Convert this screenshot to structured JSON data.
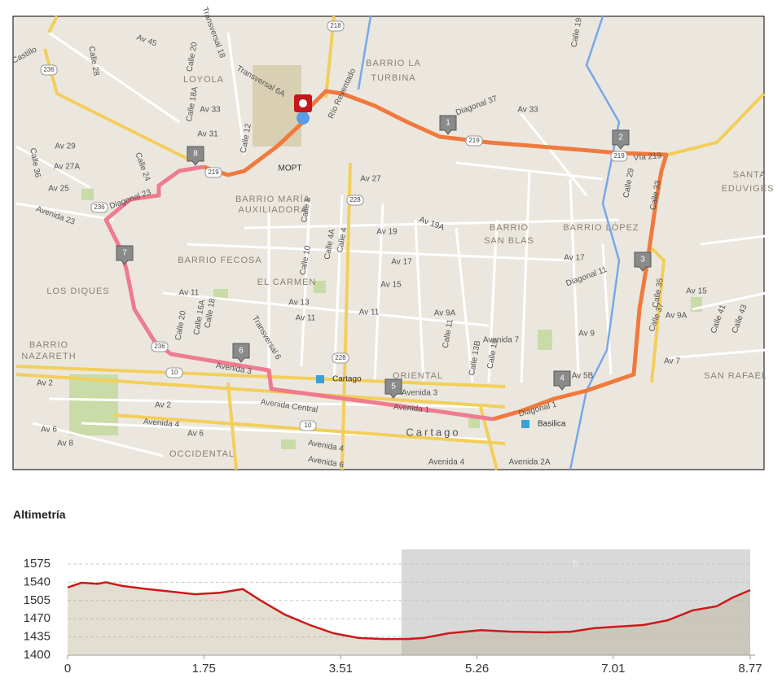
{
  "map": {
    "labels": [
      "Castillo",
      "Calle 28",
      "Av 45",
      "Calle 20",
      "Transversal 18",
      "LOYOLA",
      "Calle 18A",
      "Av 33",
      "Av 31",
      "Calle 12",
      "Transversal 6A",
      "BARRIO LA",
      "TURBINA",
      "Río Reventado",
      "Diagonal 37",
      "Av 33",
      "Calle 19",
      "Calle 29",
      "Calle 33",
      "SANTA",
      "EDUVIGES",
      "Av 29",
      "Av 27A",
      "Av 25",
      "Calle 36",
      "Calle 24",
      "Diagonal 23",
      "Avenida 23",
      "BARRIO MARÍA",
      "AUXILIADORA",
      "Av 27",
      "Calle 6",
      "Av 19A",
      "BARRIO",
      "SAN BLAS",
      "BARRIO LÓPEZ",
      "Av 19",
      "Av 17",
      "Av 17",
      "BARRIO FECOSA",
      "EL CARMEN",
      "Calle 10",
      "Calle 4A",
      "Calle 4",
      "Av 15",
      "Diagonal 11",
      "Calle 35",
      "Av 15",
      "LOS DIQUES",
      "Av 13",
      "Av 11",
      "Av 11",
      "Av 11",
      "Av 9A",
      "Av 9",
      "Av 9A",
      "Calle 37",
      "Calle 41",
      "Calle 43",
      "BARRIO",
      "NAZARETH",
      "Calle 18",
      "Calle 16A",
      "Calle 20",
      "Transversal 6",
      "Avenida 7",
      "Av 7",
      "SAN RAFAEL",
      "ORIENTAL",
      "Avenida 3",
      "Avenida 3",
      "Av 5B",
      "Av 2",
      "Av 2",
      "Avenida Central",
      "Avenida 4",
      "Av 6",
      "Av 8",
      "Av 6",
      "OCCIDENTAL",
      "Avenida 4",
      "Avenida 6",
      "Avenida 4",
      "Cartago",
      "Vía 219",
      "Diagonal 1",
      "Avenida 1",
      "Avenida 2A",
      "Calle 15",
      "Calle 13B",
      "Calle 11"
    ],
    "route_labels": [
      "236",
      "236",
      "236",
      "219",
      "219",
      "219",
      "218",
      "228",
      "228",
      "10",
      "10"
    ],
    "markers": [
      "1",
      "2",
      "3",
      "4",
      "5",
      "6",
      "7",
      "8"
    ],
    "pois": [
      "MOPT",
      "Cartago",
      "Basilica"
    ]
  },
  "chart_data": {
    "type": "area",
    "title": "Altimetría",
    "x": [
      0,
      0.18,
      0.39,
      0.49,
      0.7,
      1.02,
      1.33,
      1.64,
      1.96,
      2.25,
      2.48,
      2.79,
      3.11,
      3.42,
      3.74,
      4.05,
      4.36,
      4.57,
      4.89,
      5.31,
      5.72,
      6.14,
      6.46,
      6.77,
      7.09,
      7.4,
      7.71,
      8.03,
      8.34,
      8.55,
      8.77
    ],
    "series": [
      {
        "name": "Altimetría",
        "color": "#cc1a1a",
        "values": [
          1530,
          1539,
          1537,
          1540,
          1533,
          1527,
          1522,
          1517,
          1520,
          1527,
          1505,
          1478,
          1458,
          1442,
          1433,
          1431,
          1431,
          1433,
          1442,
          1448,
          1445,
          1444,
          1445,
          1452,
          1455,
          1458,
          1467,
          1486,
          1494,
          1511,
          1525
        ]
      }
    ],
    "xlim": [
      0,
      8.77
    ],
    "ylim": [
      1400,
      1575
    ],
    "xticks": [
      0,
      1.75,
      3.51,
      5.26,
      7.01,
      8.77
    ],
    "yticks": [
      1400,
      1435,
      1470,
      1505,
      1540,
      1575
    ],
    "highlight": {
      "xrange": [
        4.29,
        8.77
      ],
      "label": "5"
    },
    "grid": true
  }
}
